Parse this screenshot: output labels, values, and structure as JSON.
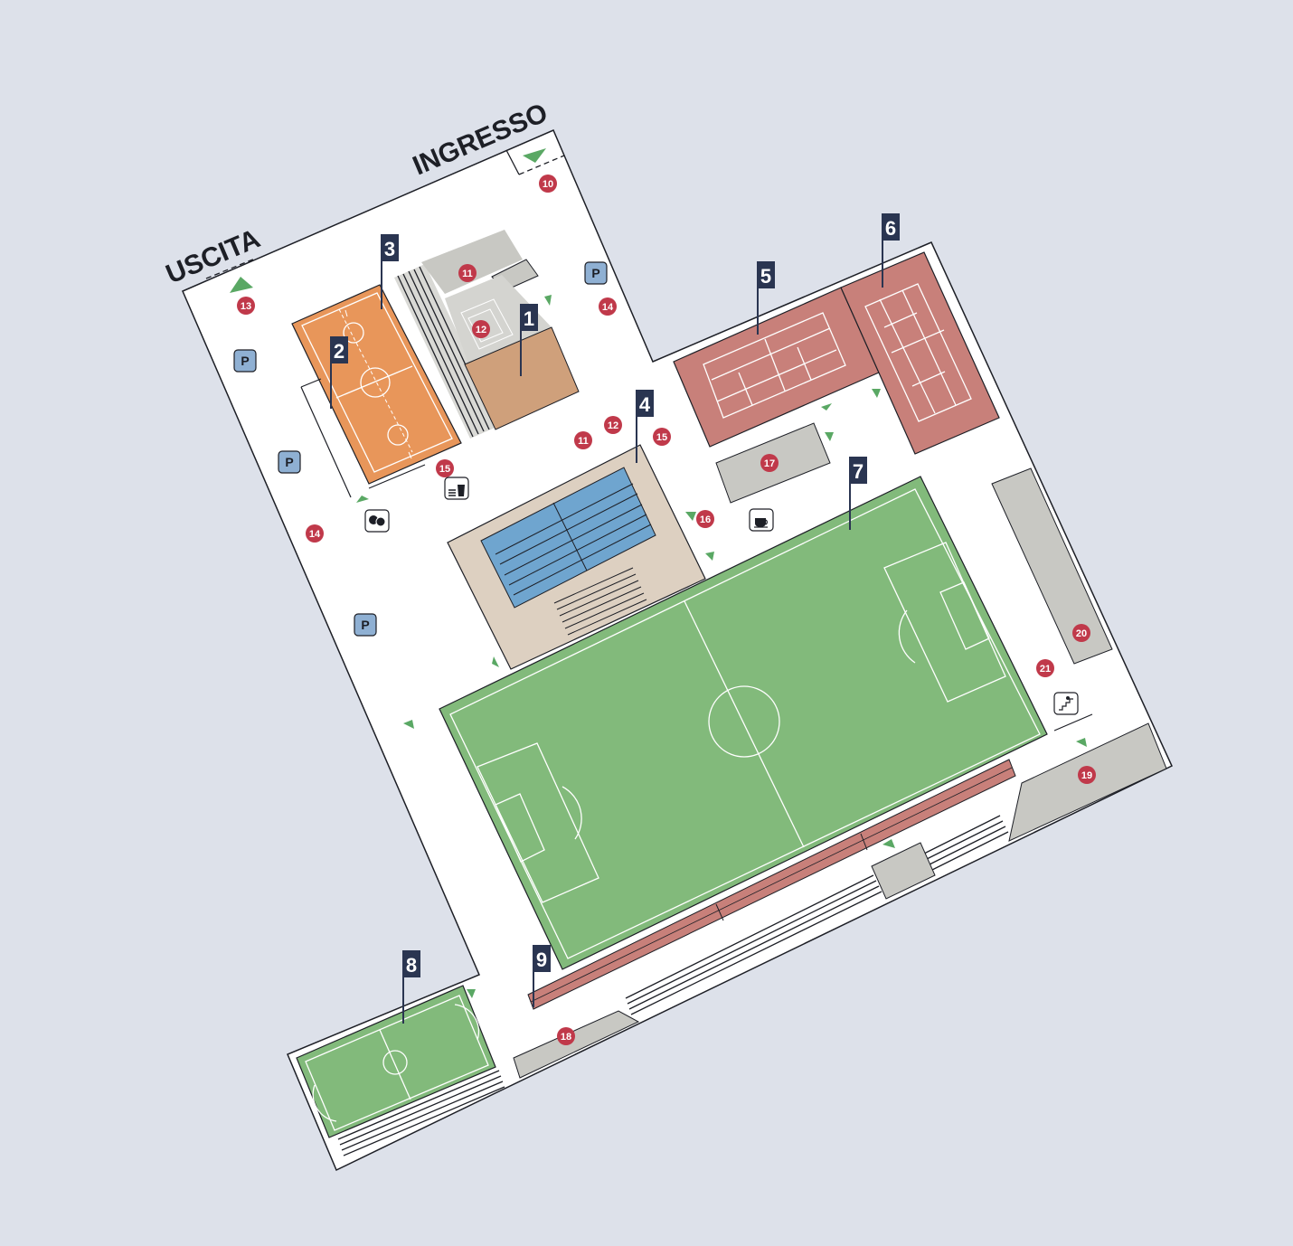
{
  "map": {
    "gates": {
      "entrance": "INGRESSO",
      "exit": "USCITA"
    },
    "facilities": [
      {
        "id": "1",
        "label": "1"
      },
      {
        "id": "2",
        "label": "2"
      },
      {
        "id": "3",
        "label": "3"
      },
      {
        "id": "4",
        "label": "4"
      },
      {
        "id": "5",
        "label": "5"
      },
      {
        "id": "6",
        "label": "6"
      },
      {
        "id": "7",
        "label": "7"
      },
      {
        "id": "8",
        "label": "8"
      },
      {
        "id": "9",
        "label": "9"
      }
    ],
    "markers": [
      {
        "id": "m10",
        "label": "10"
      },
      {
        "id": "m11a",
        "label": "11"
      },
      {
        "id": "m12a",
        "label": "12"
      },
      {
        "id": "m13",
        "label": "13"
      },
      {
        "id": "m14a",
        "label": "14"
      },
      {
        "id": "m11b",
        "label": "11"
      },
      {
        "id": "m12b",
        "label": "12"
      },
      {
        "id": "m15a",
        "label": "15"
      },
      {
        "id": "m15b",
        "label": "15"
      },
      {
        "id": "m14b",
        "label": "14"
      },
      {
        "id": "m16",
        "label": "16"
      },
      {
        "id": "m17",
        "label": "17"
      },
      {
        "id": "m18",
        "label": "18"
      },
      {
        "id": "m19",
        "label": "19"
      },
      {
        "id": "m20",
        "label": "20"
      },
      {
        "id": "m21",
        "label": "21"
      }
    ],
    "parking": {
      "label": "P",
      "count": 4
    },
    "icons": [
      "theater-icon",
      "drink-icon",
      "coffee-icon",
      "stairs-icon",
      "arrow-icon"
    ],
    "colors": {
      "background": "#dde1ea",
      "ground": "#ffffff",
      "football_pitch": "#82ba7b",
      "tennis_court": "#c8807a",
      "basketball_court": "#e8965a",
      "pool": "#6fa5cf",
      "pool_deck": "#ddd0c1",
      "indoor_hall": "#cfa07b",
      "service_block": "#c8c8c3",
      "label_flag": "#2a3551",
      "marker": "#c0394a",
      "parking": "#8fb0d3",
      "arrow": "#5aa864"
    }
  }
}
